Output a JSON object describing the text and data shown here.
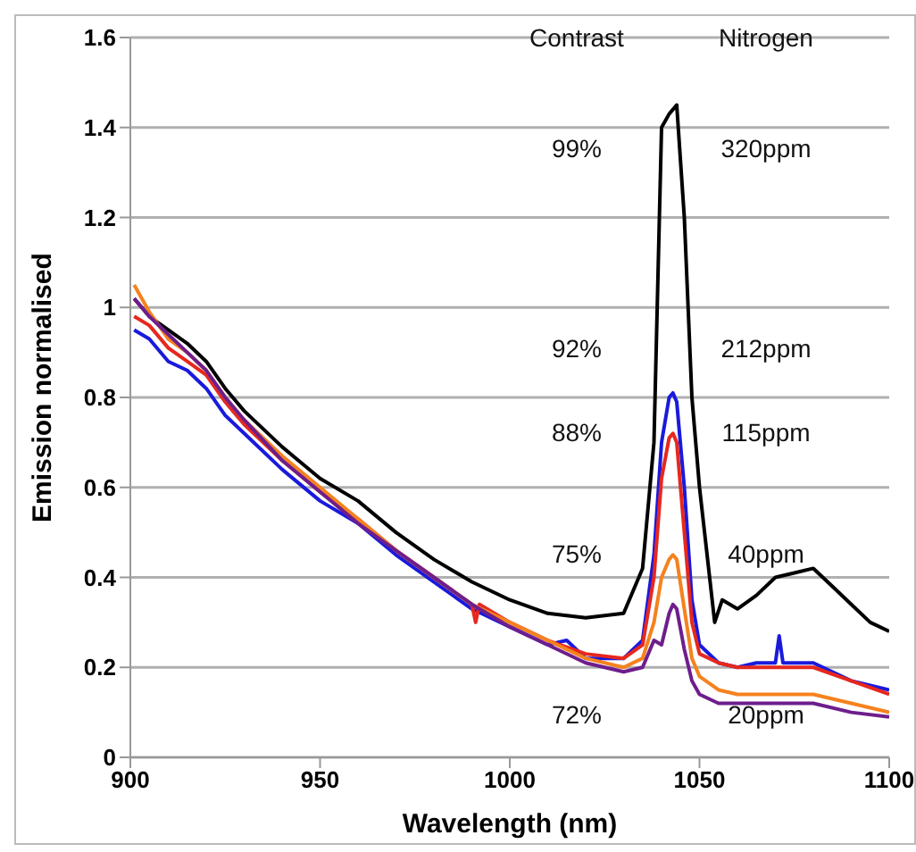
{
  "chart_data": {
    "type": "line",
    "xlabel": "Wavelength (nm)",
    "ylabel": "Emission normalised",
    "xlim": [
      900,
      1100
    ],
    "xticks": [
      900,
      950,
      1000,
      1050,
      1100
    ],
    "ylim": [
      0,
      1.6
    ],
    "yticks": [
      0,
      0.2,
      0.4,
      0.6,
      0.8,
      1,
      1.2,
      1.4,
      1.6
    ],
    "grid": "y",
    "marker": "none",
    "line_style": "solid",
    "series": [
      {
        "color": "#000000",
        "x": [
          901,
          905,
          910,
          915,
          920,
          925,
          930,
          940,
          950,
          960,
          970,
          980,
          990,
          1000,
          1010,
          1020,
          1030,
          1035,
          1038,
          1040,
          1042,
          1044,
          1046,
          1048,
          1050,
          1052,
          1054,
          1056,
          1060,
          1065,
          1070,
          1075,
          1080,
          1085,
          1090,
          1095,
          1100
        ],
        "values": [
          1.02,
          0.98,
          0.95,
          0.92,
          0.88,
          0.82,
          0.77,
          0.69,
          0.62,
          0.57,
          0.5,
          0.44,
          0.39,
          0.35,
          0.32,
          0.31,
          0.32,
          0.42,
          0.7,
          1.4,
          1.43,
          1.45,
          1.2,
          0.8,
          0.6,
          0.45,
          0.3,
          0.35,
          0.33,
          0.36,
          0.4,
          0.41,
          0.42,
          0.38,
          0.34,
          0.3,
          0.28
        ]
      },
      {
        "color": "#1a1adc",
        "x": [
          901,
          905,
          910,
          915,
          920,
          925,
          930,
          940,
          950,
          960,
          970,
          980,
          990,
          1000,
          1010,
          1015,
          1020,
          1030,
          1035,
          1038,
          1040,
          1042,
          1043,
          1044,
          1046,
          1048,
          1050,
          1055,
          1060,
          1065,
          1070,
          1071,
          1072,
          1080,
          1090,
          1100
        ],
        "values": [
          0.95,
          0.93,
          0.88,
          0.86,
          0.82,
          0.76,
          0.72,
          0.64,
          0.57,
          0.52,
          0.45,
          0.39,
          0.33,
          0.29,
          0.25,
          0.26,
          0.22,
          0.22,
          0.26,
          0.45,
          0.7,
          0.8,
          0.81,
          0.79,
          0.6,
          0.35,
          0.25,
          0.21,
          0.2,
          0.21,
          0.21,
          0.27,
          0.21,
          0.21,
          0.17,
          0.15
        ]
      },
      {
        "color": "#e6281e",
        "x": [
          901,
          905,
          910,
          915,
          920,
          925,
          930,
          940,
          950,
          960,
          970,
          980,
          990,
          991,
          992,
          1000,
          1010,
          1020,
          1030,
          1035,
          1038,
          1040,
          1042,
          1043,
          1044,
          1046,
          1048,
          1050,
          1055,
          1060,
          1070,
          1080,
          1090,
          1100
        ],
        "values": [
          0.98,
          0.96,
          0.91,
          0.88,
          0.85,
          0.79,
          0.74,
          0.66,
          0.59,
          0.53,
          0.46,
          0.4,
          0.34,
          0.3,
          0.34,
          0.3,
          0.26,
          0.23,
          0.22,
          0.25,
          0.4,
          0.62,
          0.71,
          0.72,
          0.7,
          0.5,
          0.3,
          0.23,
          0.21,
          0.2,
          0.2,
          0.2,
          0.17,
          0.14
        ]
      },
      {
        "color": "#f5821e",
        "x": [
          901,
          905,
          910,
          915,
          920,
          925,
          930,
          940,
          950,
          960,
          970,
          980,
          990,
          1000,
          1010,
          1020,
          1030,
          1035,
          1038,
          1040,
          1042,
          1043,
          1044,
          1046,
          1048,
          1050,
          1055,
          1060,
          1070,
          1080,
          1090,
          1100
        ],
        "values": [
          1.05,
          0.99,
          0.93,
          0.9,
          0.86,
          0.8,
          0.75,
          0.67,
          0.6,
          0.53,
          0.46,
          0.4,
          0.34,
          0.3,
          0.26,
          0.22,
          0.2,
          0.22,
          0.3,
          0.4,
          0.44,
          0.45,
          0.44,
          0.33,
          0.22,
          0.18,
          0.15,
          0.14,
          0.14,
          0.14,
          0.12,
          0.1
        ]
      },
      {
        "color": "#6e1e8c",
        "x": [
          901,
          905,
          910,
          915,
          920,
          925,
          930,
          940,
          950,
          960,
          970,
          980,
          990,
          1000,
          1010,
          1020,
          1025,
          1030,
          1035,
          1038,
          1040,
          1042,
          1043,
          1044,
          1046,
          1048,
          1050,
          1055,
          1060,
          1070,
          1080,
          1090,
          1100
        ],
        "values": [
          1.02,
          0.98,
          0.94,
          0.9,
          0.86,
          0.8,
          0.75,
          0.66,
          0.59,
          0.52,
          0.46,
          0.4,
          0.34,
          0.29,
          0.25,
          0.21,
          0.2,
          0.19,
          0.2,
          0.26,
          0.25,
          0.32,
          0.34,
          0.33,
          0.24,
          0.17,
          0.14,
          0.12,
          0.12,
          0.12,
          0.12,
          0.1,
          0.09
        ]
      }
    ],
    "annotations": [
      "Contrast",
      "Nitrogen",
      "99%",
      "320ppm",
      "92%",
      "212ppm",
      "88%",
      "115ppm",
      "75%",
      "40ppm",
      "72%",
      "20ppm"
    ]
  }
}
